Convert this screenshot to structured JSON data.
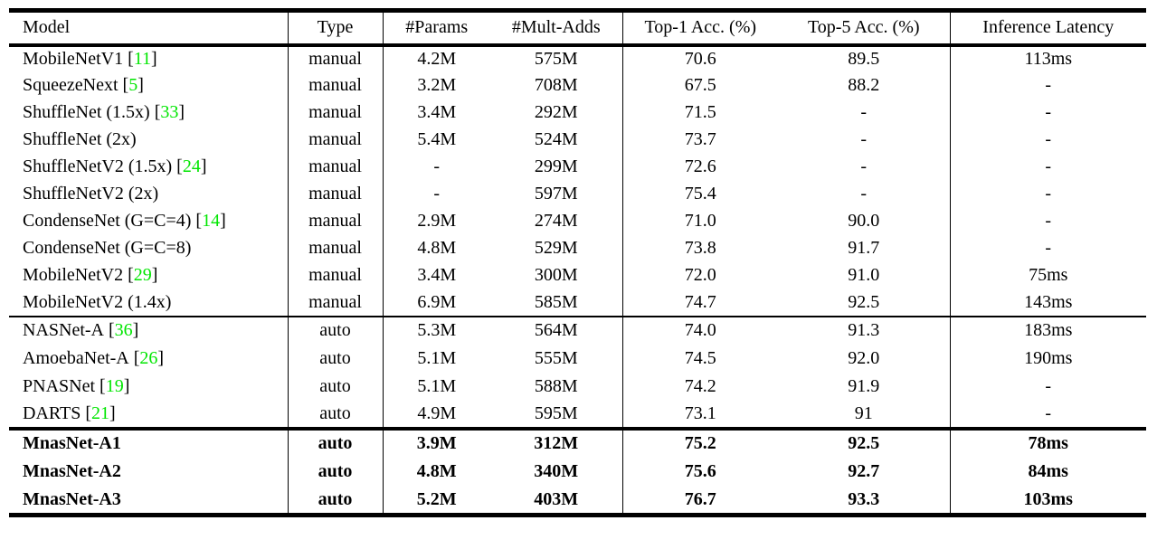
{
  "table": {
    "columns": [
      "Model",
      "Type",
      "#Params",
      "#Mult-Adds",
      "Top-1 Acc. (%)",
      "Top-5 Acc. (%)",
      "Inference Latency"
    ],
    "citation": {
      "open": "[",
      "close": "]"
    },
    "sections": [
      {
        "name": "manual-models",
        "rows": [
          {
            "model": "MobileNetV1",
            "cite": "11",
            "type": "manual",
            "params": "4.2M",
            "mult_adds": "575M",
            "top1": "70.6",
            "top5": "89.5",
            "latency": "113ms"
          },
          {
            "model": "SqueezeNext",
            "cite": "5",
            "type": "manual",
            "params": "3.2M",
            "mult_adds": "708M",
            "top1": "67.5",
            "top5": "88.2",
            "latency": "-"
          },
          {
            "model": "ShuffleNet (1.5x)",
            "cite": "33",
            "type": "manual",
            "params": "3.4M",
            "mult_adds": "292M",
            "top1": "71.5",
            "top5": "-",
            "latency": "-"
          },
          {
            "model": "ShuffleNet (2x)",
            "cite": null,
            "type": "manual",
            "params": "5.4M",
            "mult_adds": "524M",
            "top1": "73.7",
            "top5": "-",
            "latency": "-"
          },
          {
            "model": "ShuffleNetV2 (1.5x)",
            "cite": "24",
            "type": "manual",
            "params": "-",
            "mult_adds": "299M",
            "top1": "72.6",
            "top5": "-",
            "latency": "-"
          },
          {
            "model": "ShuffleNetV2 (2x)",
            "cite": null,
            "type": "manual",
            "params": "-",
            "mult_adds": "597M",
            "top1": "75.4",
            "top5": "-",
            "latency": "-"
          },
          {
            "model": "CondenseNet (G=C=4)",
            "cite": "14",
            "type": "manual",
            "params": "2.9M",
            "mult_adds": "274M",
            "top1": "71.0",
            "top5": "90.0",
            "latency": "-"
          },
          {
            "model": "CondenseNet (G=C=8)",
            "cite": null,
            "type": "manual",
            "params": "4.8M",
            "mult_adds": "529M",
            "top1": "73.8",
            "top5": "91.7",
            "latency": "-"
          },
          {
            "model": "MobileNetV2",
            "cite": "29",
            "type": "manual",
            "params": "3.4M",
            "mult_adds": "300M",
            "top1": "72.0",
            "top5": "91.0",
            "latency": "75ms"
          },
          {
            "model": "MobileNetV2 (1.4x)",
            "cite": null,
            "type": "manual",
            "params": "6.9M",
            "mult_adds": "585M",
            "top1": "74.7",
            "top5": "92.5",
            "latency": "143ms"
          }
        ]
      },
      {
        "name": "auto-searched-models",
        "rows": [
          {
            "model": "NASNet-A",
            "cite": "36",
            "type": "auto",
            "params": "5.3M",
            "mult_adds": "564M",
            "top1": "74.0",
            "top5": "91.3",
            "latency": "183ms"
          },
          {
            "model": "AmoebaNet-A",
            "cite": "26",
            "type": "auto",
            "params": "5.1M",
            "mult_adds": "555M",
            "top1": "74.5",
            "top5": "92.0",
            "latency": "190ms"
          },
          {
            "model": "PNASNet",
            "cite": "19",
            "type": "auto",
            "params": "5.1M",
            "mult_adds": "588M",
            "top1": "74.2",
            "top5": "91.9",
            "latency": "-"
          },
          {
            "model": "DARTS",
            "cite": "21",
            "type": "auto",
            "params": "4.9M",
            "mult_adds": "595M",
            "top1": "73.1",
            "top5": "91",
            "latency": "-"
          }
        ]
      },
      {
        "name": "mnasnet-models",
        "rows": [
          {
            "model": "MnasNet-A1",
            "cite": null,
            "type": "auto",
            "params": "3.9M",
            "mult_adds": "312M",
            "top1": "75.2",
            "top5": "92.5",
            "latency": "78ms"
          },
          {
            "model": "MnasNet-A2",
            "cite": null,
            "type": "auto",
            "params": "4.8M",
            "mult_adds": "340M",
            "top1": "75.6",
            "top5": "92.7",
            "latency": "84ms"
          },
          {
            "model": "MnasNet-A3",
            "cite": null,
            "type": "auto",
            "params": "5.2M",
            "mult_adds": "403M",
            "top1": "76.7",
            "top5": "93.3",
            "latency": "103ms"
          }
        ]
      }
    ]
  },
  "colors": {
    "citation_green": "#00e600",
    "rule_black": "#000000",
    "text_black": "#000000",
    "background_white": "#ffffff"
  }
}
